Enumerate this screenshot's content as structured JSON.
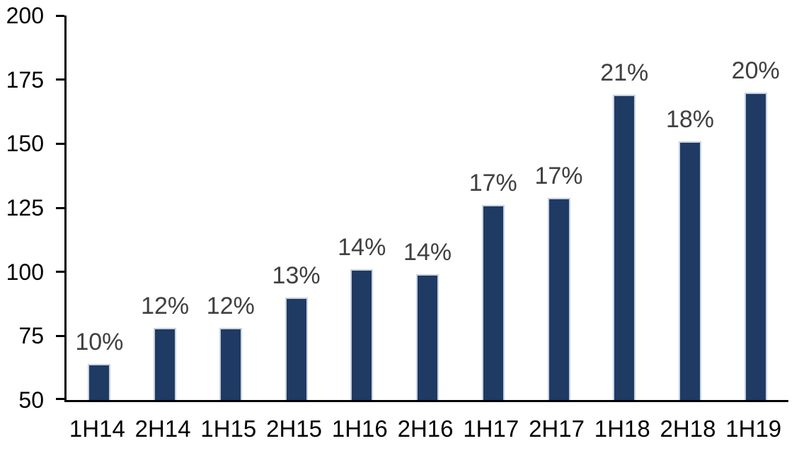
{
  "chart_data": {
    "type": "bar",
    "title": "",
    "xlabel": "",
    "ylabel": "",
    "categories": [
      "1H14",
      "2H14",
      "1H15",
      "2H15",
      "1H16",
      "2H16",
      "1H17",
      "2H17",
      "1H18",
      "2H18",
      "1H19"
    ],
    "values": [
      64,
      78,
      78,
      90,
      101,
      99,
      126,
      129,
      169,
      151,
      170
    ],
    "bar_labels": [
      "10%",
      "12%",
      "12%",
      "13%",
      "14%",
      "14%",
      "17%",
      "17%",
      "21%",
      "18%",
      "20%"
    ],
    "ylim": [
      50,
      200
    ],
    "yticks": [
      50,
      75,
      100,
      125,
      150,
      175,
      200
    ],
    "grid": false,
    "legend": false,
    "colors": {
      "bar_fill": "#1f3a63",
      "bar_border": "#c7d1e0",
      "data_label": "#404040",
      "axis_text": "#000000",
      "axis_line": "#000000",
      "background": "#ffffff"
    }
  }
}
